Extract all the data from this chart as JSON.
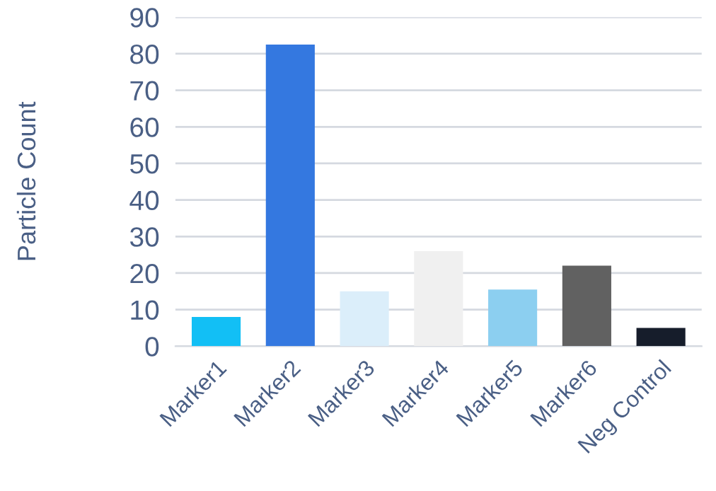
{
  "chart_data": {
    "type": "bar",
    "ylabel": "Particle Count",
    "categories": [
      "Marker1",
      "Marker2",
      "Marker3",
      "Marker4",
      "Marker5",
      "Marker6",
      "Neg Control"
    ],
    "values": [
      8,
      82.5,
      15,
      26,
      15.5,
      22,
      5
    ],
    "colors": [
      "#12bff5",
      "#3478e0",
      "#dbeefa",
      "#f0f0f0",
      "#8ccff0",
      "#616161",
      "#161d2b"
    ],
    "ylim": [
      0,
      90
    ],
    "yticks": [
      0,
      10,
      20,
      30,
      40,
      50,
      60,
      70,
      80,
      90
    ],
    "grid": "y"
  }
}
